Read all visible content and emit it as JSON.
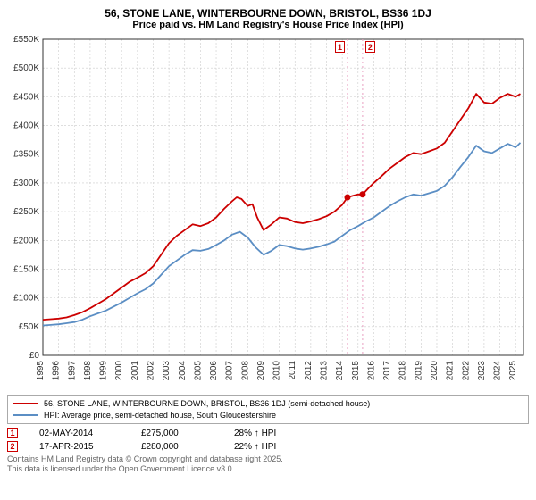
{
  "title": "56, STONE LANE, WINTERBOURNE DOWN, BRISTOL, BS36 1DJ",
  "subtitle": "Price paid vs. HM Land Registry's House Price Index (HPI)",
  "title_fontsize": 12,
  "subtitle_fontsize": 11,
  "chart": {
    "type": "line",
    "background_color": "#ffffff",
    "plot_border_color": "#333333",
    "grid_color": "#cccccc",
    "xlim": [
      1995,
      2025.5
    ],
    "ylim": [
      0,
      550000
    ],
    "ytick_step": 50000,
    "ytick_labels": [
      "£0",
      "£50K",
      "£100K",
      "£150K",
      "£200K",
      "£250K",
      "£300K",
      "£350K",
      "£400K",
      "£450K",
      "£500K",
      "£550K"
    ],
    "xtick_step": 1,
    "xtick_labels": [
      "1995",
      "1996",
      "1997",
      "1998",
      "1999",
      "2000",
      "2001",
      "2002",
      "2003",
      "2004",
      "2005",
      "2006",
      "2007",
      "2008",
      "2009",
      "2010",
      "2011",
      "2012",
      "2013",
      "2014",
      "2015",
      "2016",
      "2017",
      "2018",
      "2019",
      "2020",
      "2021",
      "2022",
      "2023",
      "2024",
      "2025"
    ],
    "xtick_rotation": -90,
    "tick_fontsize": 10,
    "line_width": 1.8,
    "series": [
      {
        "name": "price_paid",
        "color": "#cc0000",
        "points": [
          [
            1995.0,
            62000
          ],
          [
            1995.5,
            63000
          ],
          [
            1996.0,
            64000
          ],
          [
            1996.5,
            66000
          ],
          [
            1997.0,
            70000
          ],
          [
            1997.5,
            75000
          ],
          [
            1998.0,
            82000
          ],
          [
            1998.5,
            90000
          ],
          [
            1999.0,
            98000
          ],
          [
            1999.5,
            108000
          ],
          [
            2000.0,
            118000
          ],
          [
            2000.5,
            128000
          ],
          [
            2001.0,
            135000
          ],
          [
            2001.5,
            143000
          ],
          [
            2002.0,
            155000
          ],
          [
            2002.5,
            175000
          ],
          [
            2003.0,
            195000
          ],
          [
            2003.5,
            208000
          ],
          [
            2004.0,
            218000
          ],
          [
            2004.5,
            228000
          ],
          [
            2005.0,
            225000
          ],
          [
            2005.5,
            230000
          ],
          [
            2006.0,
            240000
          ],
          [
            2006.5,
            255000
          ],
          [
            2007.0,
            268000
          ],
          [
            2007.3,
            275000
          ],
          [
            2007.6,
            272000
          ],
          [
            2008.0,
            260000
          ],
          [
            2008.3,
            263000
          ],
          [
            2008.6,
            240000
          ],
          [
            2009.0,
            218000
          ],
          [
            2009.5,
            228000
          ],
          [
            2010.0,
            240000
          ],
          [
            2010.5,
            238000
          ],
          [
            2011.0,
            232000
          ],
          [
            2011.5,
            230000
          ],
          [
            2012.0,
            233000
          ],
          [
            2012.5,
            237000
          ],
          [
            2013.0,
            242000
          ],
          [
            2013.5,
            250000
          ],
          [
            2014.0,
            262000
          ],
          [
            2014.33,
            275000
          ],
          [
            2014.7,
            278000
          ],
          [
            2015.0,
            280000
          ],
          [
            2015.29,
            280000
          ],
          [
            2015.7,
            292000
          ],
          [
            2016.0,
            300000
          ],
          [
            2016.5,
            312000
          ],
          [
            2017.0,
            325000
          ],
          [
            2017.5,
            335000
          ],
          [
            2018.0,
            345000
          ],
          [
            2018.5,
            352000
          ],
          [
            2019.0,
            350000
          ],
          [
            2019.5,
            355000
          ],
          [
            2020.0,
            360000
          ],
          [
            2020.5,
            370000
          ],
          [
            2021.0,
            390000
          ],
          [
            2021.5,
            410000
          ],
          [
            2022.0,
            430000
          ],
          [
            2022.5,
            455000
          ],
          [
            2023.0,
            440000
          ],
          [
            2023.5,
            438000
          ],
          [
            2024.0,
            448000
          ],
          [
            2024.5,
            455000
          ],
          [
            2025.0,
            450000
          ],
          [
            2025.3,
            455000
          ]
        ]
      },
      {
        "name": "hpi",
        "color": "#5b8ec4",
        "points": [
          [
            1995.0,
            52000
          ],
          [
            1995.5,
            53000
          ],
          [
            1996.0,
            54000
          ],
          [
            1996.5,
            56000
          ],
          [
            1997.0,
            58000
          ],
          [
            1997.5,
            62000
          ],
          [
            1998.0,
            68000
          ],
          [
            1998.5,
            73000
          ],
          [
            1999.0,
            78000
          ],
          [
            1999.5,
            85000
          ],
          [
            2000.0,
            92000
          ],
          [
            2000.5,
            100000
          ],
          [
            2001.0,
            108000
          ],
          [
            2001.5,
            115000
          ],
          [
            2002.0,
            125000
          ],
          [
            2002.5,
            140000
          ],
          [
            2003.0,
            155000
          ],
          [
            2003.5,
            165000
          ],
          [
            2004.0,
            175000
          ],
          [
            2004.5,
            183000
          ],
          [
            2005.0,
            182000
          ],
          [
            2005.5,
            185000
          ],
          [
            2006.0,
            192000
          ],
          [
            2006.5,
            200000
          ],
          [
            2007.0,
            210000
          ],
          [
            2007.5,
            215000
          ],
          [
            2008.0,
            205000
          ],
          [
            2008.5,
            188000
          ],
          [
            2009.0,
            175000
          ],
          [
            2009.5,
            182000
          ],
          [
            2010.0,
            192000
          ],
          [
            2010.5,
            190000
          ],
          [
            2011.0,
            186000
          ],
          [
            2011.5,
            184000
          ],
          [
            2012.0,
            186000
          ],
          [
            2012.5,
            189000
          ],
          [
            2013.0,
            193000
          ],
          [
            2013.5,
            198000
          ],
          [
            2014.0,
            208000
          ],
          [
            2014.5,
            218000
          ],
          [
            2015.0,
            225000
          ],
          [
            2015.5,
            233000
          ],
          [
            2016.0,
            240000
          ],
          [
            2016.5,
            250000
          ],
          [
            2017.0,
            260000
          ],
          [
            2017.5,
            268000
          ],
          [
            2018.0,
            275000
          ],
          [
            2018.5,
            280000
          ],
          [
            2019.0,
            278000
          ],
          [
            2019.5,
            282000
          ],
          [
            2020.0,
            286000
          ],
          [
            2020.5,
            295000
          ],
          [
            2021.0,
            310000
          ],
          [
            2021.5,
            328000
          ],
          [
            2022.0,
            345000
          ],
          [
            2022.5,
            365000
          ],
          [
            2023.0,
            355000
          ],
          [
            2023.5,
            352000
          ],
          [
            2024.0,
            360000
          ],
          [
            2024.5,
            368000
          ],
          [
            2025.0,
            362000
          ],
          [
            2025.3,
            370000
          ]
        ]
      }
    ],
    "sale_markers": [
      {
        "label": "1",
        "x": 2014.33,
        "y": 275000,
        "line_color": "#e8a0c0"
      },
      {
        "label": "2",
        "x": 2015.29,
        "y": 280000,
        "line_color": "#e8a0c0"
      }
    ],
    "sale_dot_color": "#cc0000",
    "sale_dot_radius": 3.5
  },
  "legend": {
    "items": [
      {
        "color": "#cc0000",
        "text": "56, STONE LANE, WINTERBOURNE DOWN, BRISTOL, BS36 1DJ (semi-detached house)"
      },
      {
        "color": "#5b8ec4",
        "text": "HPI: Average price, semi-detached house, South Gloucestershire"
      }
    ]
  },
  "sales_table": [
    {
      "badge": "1",
      "date": "02-MAY-2014",
      "price": "£275,000",
      "delta": "28% ↑ HPI"
    },
    {
      "badge": "2",
      "date": "17-APR-2015",
      "price": "£280,000",
      "delta": "22% ↑ HPI"
    }
  ],
  "footer": {
    "line1": "Contains HM Land Registry data © Crown copyright and database right 2025.",
    "line2": "This data is licensed under the Open Government Licence v3.0."
  }
}
